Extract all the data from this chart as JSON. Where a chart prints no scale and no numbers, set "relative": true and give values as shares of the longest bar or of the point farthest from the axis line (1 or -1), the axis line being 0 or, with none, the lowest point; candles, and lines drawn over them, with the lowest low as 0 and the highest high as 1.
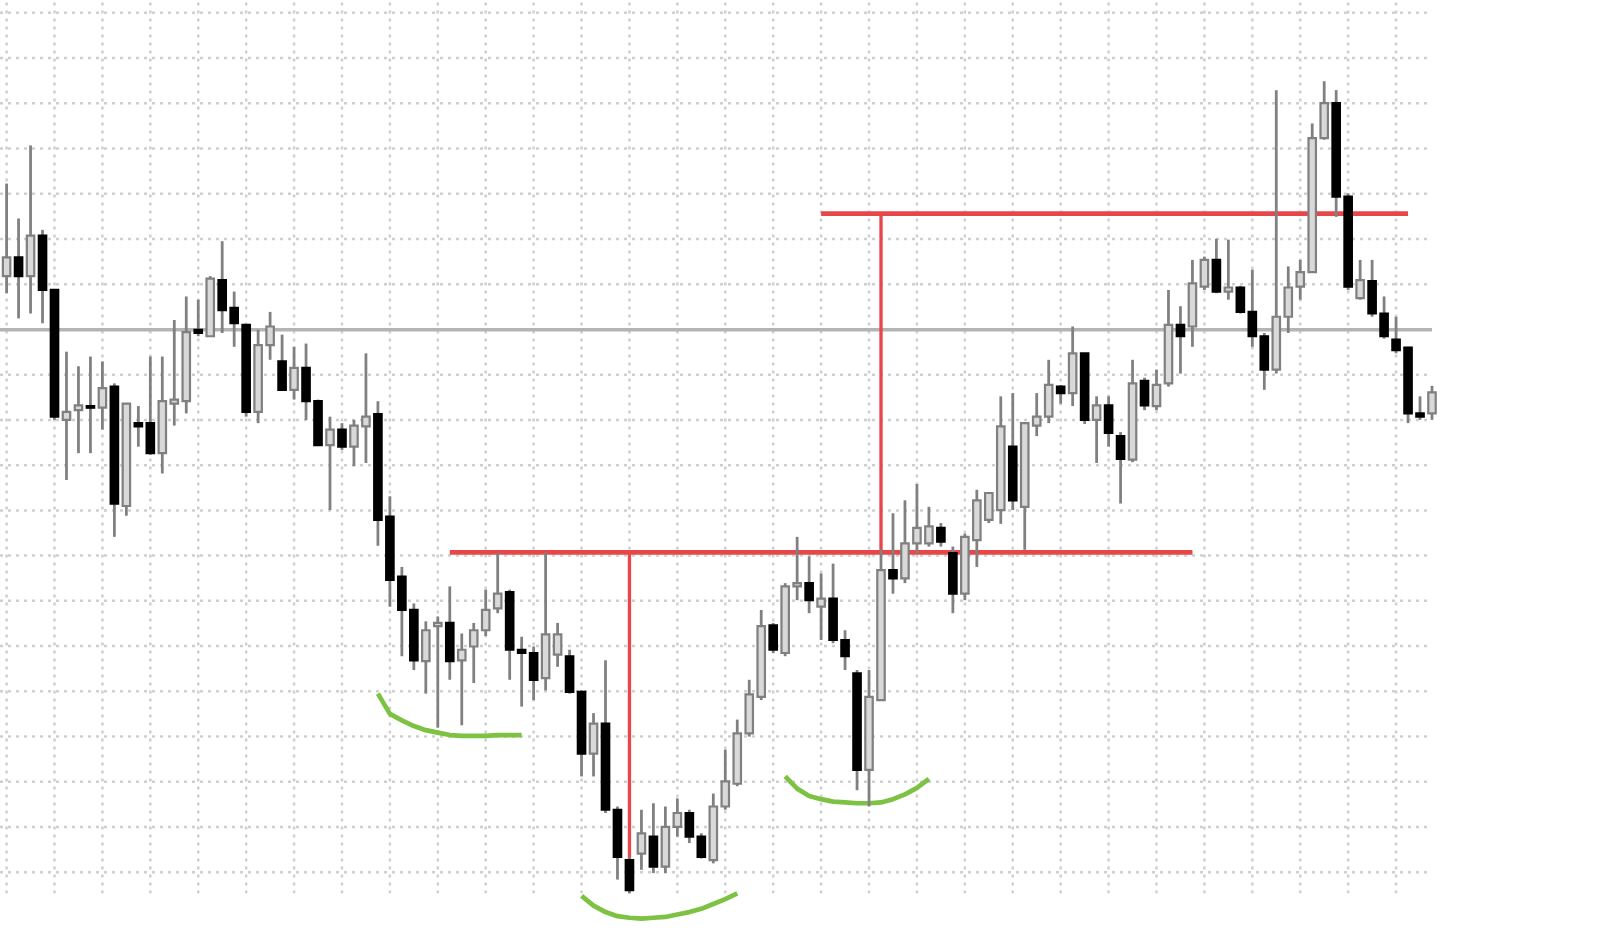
{
  "chart_data": {
    "type": "candlestick",
    "relative": true,
    "grid": true,
    "categories": [
      null,
      null,
      null,
      null,
      null,
      null,
      null,
      null,
      null,
      null,
      null,
      null,
      null,
      null,
      null,
      null,
      null,
      null,
      null,
      null,
      null,
      null,
      null,
      null,
      null,
      null,
      null,
      null,
      null,
      null,
      null,
      null,
      null,
      null,
      null,
      null,
      null,
      null,
      null,
      null,
      null,
      null,
      null,
      null,
      null,
      null,
      null,
      null,
      null,
      null,
      null,
      null,
      null,
      null,
      null,
      null,
      null,
      null,
      null,
      null,
      null,
      null,
      null,
      null,
      null,
      null,
      null,
      null,
      null,
      null,
      null,
      null,
      null,
      null,
      null,
      null,
      null,
      null,
      null,
      null,
      null,
      null,
      null,
      null,
      null,
      null,
      null,
      null,
      null,
      null,
      null,
      null,
      null,
      null,
      null,
      null,
      null,
      null,
      null,
      null,
      null,
      null,
      null,
      null,
      null,
      null,
      null,
      null,
      null,
      null,
      null,
      null,
      null,
      null,
      null,
      null,
      null,
      null,
      null,
      null
    ],
    "ohlc": [
      [
        0.76,
        0.874,
        0.739,
        0.783
      ],
      [
        0.783,
        0.831,
        0.708,
        0.76
      ],
      [
        0.76,
        0.921,
        0.714,
        0.81
      ],
      [
        0.81,
        0.817,
        0.702,
        0.743
      ],
      [
        0.743,
        0.743,
        0.583,
        0.587
      ],
      [
        0.583,
        0.667,
        0.509,
        0.593
      ],
      [
        0.595,
        0.649,
        0.542,
        0.601
      ],
      [
        0.6,
        0.661,
        0.542,
        0.598
      ],
      [
        0.598,
        0.655,
        0.571,
        0.622
      ],
      [
        0.624,
        0.628,
        0.439,
        0.48
      ],
      [
        0.477,
        0.603,
        0.465,
        0.603
      ],
      [
        0.579,
        0.6,
        0.55,
        0.575
      ],
      [
        0.579,
        0.661,
        0.54,
        0.542
      ],
      [
        0.542,
        0.661,
        0.517,
        0.606
      ],
      [
        0.603,
        0.706,
        0.576,
        0.608
      ],
      [
        0.606,
        0.735,
        0.591,
        0.691
      ],
      [
        0.694,
        0.731,
        0.686,
        0.69
      ],
      [
        0.686,
        0.76,
        0.686,
        0.757
      ],
      [
        0.755,
        0.803,
        0.69,
        0.718
      ],
      [
        0.721,
        0.741,
        0.673,
        0.702
      ],
      [
        0.7,
        0.7,
        0.587,
        0.593
      ],
      [
        0.593,
        0.694,
        0.579,
        0.675
      ],
      [
        0.675,
        0.716,
        0.657,
        0.698
      ],
      [
        0.655,
        0.688,
        0.62,
        0.62
      ],
      [
        0.62,
        0.673,
        0.608,
        0.647
      ],
      [
        0.647,
        0.677,
        0.583,
        0.606
      ],
      [
        0.606,
        0.608,
        0.552,
        0.552
      ],
      [
        0.552,
        0.587,
        0.472,
        0.571
      ],
      [
        0.571,
        0.579,
        0.546,
        0.55
      ],
      [
        0.55,
        0.583,
        0.526,
        0.576
      ],
      [
        0.575,
        0.665,
        0.53,
        0.587
      ],
      [
        0.59,
        0.606,
        0.428,
        0.46
      ],
      [
        0.464,
        0.489,
        0.353,
        0.386
      ],
      [
        0.39,
        0.402,
        0.292,
        0.349
      ],
      [
        0.349,
        0.357,
        0.275,
        0.287
      ],
      [
        0.286,
        0.335,
        0.246,
        0.324
      ],
      [
        0.329,
        0.341,
        0.204,
        0.333
      ],
      [
        0.333,
        0.378,
        0.263,
        0.286
      ],
      [
        0.287,
        0.32,
        0.207,
        0.3
      ],
      [
        0.304,
        0.333,
        0.259,
        0.324
      ],
      [
        0.324,
        0.374,
        0.317,
        0.349
      ],
      [
        0.351,
        0.419,
        0.345,
        0.369
      ],
      [
        0.371,
        0.374,
        0.263,
        0.3
      ],
      [
        0.3,
        0.316,
        0.23,
        0.296
      ],
      [
        0.296,
        0.304,
        0.238,
        0.263
      ],
      [
        0.265,
        0.42,
        0.25,
        0.319
      ],
      [
        0.294,
        0.333,
        0.279,
        0.319
      ],
      [
        0.292,
        0.3,
        0.246,
        0.248
      ],
      [
        0.248,
        0.25,
        0.144,
        0.172
      ],
      [
        0.172,
        0.222,
        0.144,
        0.209
      ],
      [
        0.209,
        0.287,
        0.099,
        0.103
      ],
      [
        0.103,
        0.107,
        0.017,
        0.045
      ],
      [
        0.041,
        0.045,
        0.0,
        0.004
      ],
      [
        0.049,
        0.103,
        0.029,
        0.074
      ],
      [
        0.07,
        0.111,
        0.025,
        0.033
      ],
      [
        0.033,
        0.107,
        0.025,
        0.082
      ],
      [
        0.082,
        0.117,
        0.07,
        0.099
      ],
      [
        0.099,
        0.103,
        0.062,
        0.07
      ],
      [
        0.07,
        0.074,
        0.043,
        0.045
      ],
      [
        0.041,
        0.123,
        0.037,
        0.107
      ],
      [
        0.107,
        0.177,
        0.103,
        0.138
      ],
      [
        0.135,
        0.214,
        0.132,
        0.197
      ],
      [
        0.197,
        0.263,
        0.193,
        0.245
      ],
      [
        0.242,
        0.349,
        0.238,
        0.329
      ],
      [
        0.33,
        0.333,
        0.296,
        0.3
      ],
      [
        0.296,
        0.382,
        0.292,
        0.378
      ],
      [
        0.378,
        0.439,
        0.361,
        0.382
      ],
      [
        0.382,
        0.415,
        0.345,
        0.361
      ],
      [
        0.353,
        0.394,
        0.312,
        0.363
      ],
      [
        0.363,
        0.406,
        0.308,
        0.312
      ],
      [
        0.312,
        0.324,
        0.275,
        0.292
      ],
      [
        0.271,
        0.275,
        0.127,
        0.152
      ],
      [
        0.152,
        0.275,
        0.107,
        0.242
      ],
      [
        0.238,
        0.423,
        0.238,
        0.398
      ],
      [
        0.398,
        0.468,
        0.369,
        0.388
      ],
      [
        0.388,
        0.484,
        0.382,
        0.431
      ],
      [
        0.431,
        0.504,
        0.419,
        0.45
      ],
      [
        0.431,
        0.476,
        0.427,
        0.452
      ],
      [
        0.45,
        0.456,
        0.427,
        0.433
      ],
      [
        0.419,
        0.427,
        0.345,
        0.369
      ],
      [
        0.369,
        0.443,
        0.361,
        0.439
      ],
      [
        0.435,
        0.497,
        0.402,
        0.484
      ],
      [
        0.46,
        0.494,
        0.456,
        0.493
      ],
      [
        0.472,
        0.612,
        0.455,
        0.575
      ],
      [
        0.55,
        0.616,
        0.472,
        0.484
      ],
      [
        0.476,
        0.579,
        0.423,
        0.579
      ],
      [
        0.576,
        0.616,
        0.563,
        0.587
      ],
      [
        0.587,
        0.657,
        0.579,
        0.626
      ],
      [
        0.624,
        0.626,
        0.603,
        0.616
      ],
      [
        0.616,
        0.698,
        0.6,
        0.665
      ],
      [
        0.665,
        0.665,
        0.578,
        0.583
      ],
      [
        0.583,
        0.612,
        0.53,
        0.601
      ],
      [
        0.601,
        0.612,
        0.55,
        0.567
      ],
      [
        0.563,
        0.568,
        0.48,
        0.535
      ],
      [
        0.534,
        0.657,
        0.531,
        0.628
      ],
      [
        0.631,
        0.635,
        0.595,
        0.601
      ],
      [
        0.6,
        0.645,
        0.595,
        0.626
      ],
      [
        0.628,
        0.743,
        0.624,
        0.7
      ],
      [
        0.7,
        0.723,
        0.64,
        0.686
      ],
      [
        0.698,
        0.78,
        0.673,
        0.751
      ],
      [
        0.747,
        0.784,
        0.743,
        0.78
      ],
      [
        0.78,
        0.806,
        0.739,
        0.741
      ],
      [
        0.741,
        0.805,
        0.731,
        0.746
      ],
      [
        0.746,
        0.748,
        0.714,
        0.716
      ],
      [
        0.716,
        0.768,
        0.673,
        0.686
      ],
      [
        0.686,
        0.69,
        0.62,
        0.645
      ],
      [
        0.645,
        0.989,
        0.64,
        0.71
      ],
      [
        0.71,
        0.772,
        0.69,
        0.746
      ],
      [
        0.747,
        0.78,
        0.731,
        0.765
      ],
      [
        0.765,
        0.948,
        0.764,
        0.93
      ],
      [
        0.93,
        1.0,
        0.928,
        0.973
      ],
      [
        0.973,
        0.989,
        0.833,
        0.858
      ],
      [
        0.858,
        0.862,
        0.743,
        0.747
      ],
      [
        0.733,
        0.78,
        0.731,
        0.755
      ],
      [
        0.754,
        0.78,
        0.71,
        0.714
      ],
      [
        0.714,
        0.735,
        0.683,
        0.686
      ],
      [
        0.682,
        0.71,
        0.665,
        0.669
      ],
      [
        0.672,
        0.673,
        0.579,
        0.591
      ],
      [
        0.591,
        0.612,
        0.583,
        0.587
      ],
      [
        0.591,
        0.625,
        0.583,
        0.617
      ]
    ],
    "colors": [
      "#d9d9d9",
      "#000000",
      "#d9d9d9",
      "#000000",
      "#000000",
      "#d9d9d9",
      "#d9d9d9",
      "#000000",
      "#d9d9d9",
      "#000000",
      "#d9d9d9",
      "#000000",
      "#000000",
      "#d9d9d9",
      "#d9d9d9",
      "#d9d9d9",
      "#000000",
      "#d9d9d9",
      "#000000",
      "#000000",
      "#000000",
      "#d9d9d9",
      "#d9d9d9",
      "#000000",
      "#d9d9d9",
      "#000000",
      "#000000",
      "#d9d9d9",
      "#000000",
      "#d9d9d9",
      "#d9d9d9",
      "#000000",
      "#000000",
      "#000000",
      "#000000",
      "#d9d9d9",
      "#d9d9d9",
      "#000000",
      "#d9d9d9",
      "#d9d9d9",
      "#d9d9d9",
      "#d9d9d9",
      "#000000",
      "#000000",
      "#000000",
      "#d9d9d9",
      "#d9d9d9",
      "#000000",
      "#000000",
      "#d9d9d9",
      "#000000",
      "#000000",
      "#000000",
      "#d9d9d9",
      "#000000",
      "#d9d9d9",
      "#d9d9d9",
      "#000000",
      "#000000",
      "#d9d9d9",
      "#d9d9d9",
      "#d9d9d9",
      "#d9d9d9",
      "#d9d9d9",
      "#000000",
      "#d9d9d9",
      "#d9d9d9",
      "#000000",
      "#d9d9d9",
      "#000000",
      "#000000",
      "#000000",
      "#d9d9d9",
      "#d9d9d9",
      "#000000",
      "#d9d9d9",
      "#d9d9d9",
      "#d9d9d9",
      "#000000",
      "#000000",
      "#d9d9d9",
      "#d9d9d9",
      "#d9d9d9",
      "#d9d9d9",
      "#000000",
      "#d9d9d9",
      "#d9d9d9",
      "#d9d9d9",
      "#000000",
      "#d9d9d9",
      "#000000",
      "#d9d9d9",
      "#000000",
      "#000000",
      "#d9d9d9",
      "#000000",
      "#d9d9d9",
      "#d9d9d9",
      "#000000",
      "#d9d9d9",
      "#d9d9d9",
      "#000000",
      "#d9d9d9",
      "#000000",
      "#000000",
      "#000000",
      "#d9d9d9",
      "#d9d9d9",
      "#d9d9d9",
      "#d9d9d9",
      "#d9d9d9",
      "#000000",
      "#000000",
      "#d9d9d9",
      "#000000",
      "#000000",
      "#000000",
      "#000000",
      "#000000",
      "#d9d9d9"
    ],
    "series": [
      {
        "type": "line",
        "color": "#e8474a",
        "values": [
          null,
          null,
          null,
          null,
          null,
          null,
          null,
          null,
          null,
          null,
          null,
          null,
          null,
          null,
          null,
          null,
          null,
          null,
          null,
          null,
          null,
          null,
          null,
          null,
          null,
          null,
          null,
          null,
          null,
          null,
          null,
          null,
          null,
          null,
          null,
          null,
          null,
          0.42,
          0.42,
          0.42,
          0.42,
          0.42,
          0.42,
          0.42,
          0.42,
          0.42,
          0.42,
          0.42,
          0.42,
          0.42,
          0.42,
          0.42,
          0.42,
          0.42,
          0.42,
          0.42,
          0.42,
          0.42,
          0.42,
          0.42,
          0.42,
          0.42,
          0.42,
          0.42,
          0.42,
          0.42,
          0.42,
          0.42,
          0.42,
          0.42,
          0.42,
          0.42,
          0.42,
          0.42,
          0.42,
          0.42,
          0.42,
          0.42,
          0.42,
          0.42,
          0.42,
          0.42,
          0.42,
          0.42,
          0.42,
          0.42,
          0.42,
          0.42,
          0.42,
          0.42,
          0.42,
          0.42,
          0.42,
          0.42,
          0.42,
          0.42,
          0.42,
          0.42,
          0.42,
          0.42,
          null,
          null,
          null,
          null,
          null,
          null,
          null,
          null,
          null,
          null,
          null,
          null,
          null,
          null,
          null,
          null,
          null,
          null,
          null,
          null
        ]
      },
      {
        "type": "line",
        "color": "#e8474a",
        "values": [
          null,
          null,
          null,
          null,
          null,
          null,
          null,
          null,
          null,
          null,
          null,
          null,
          null,
          null,
          null,
          null,
          null,
          null,
          null,
          null,
          null,
          null,
          null,
          null,
          null,
          null,
          null,
          null,
          null,
          null,
          null,
          null,
          null,
          null,
          null,
          null,
          null,
          null,
          null,
          null,
          null,
          null,
          null,
          null,
          null,
          null,
          null,
          null,
          null,
          null,
          null,
          null,
          null,
          null,
          null,
          null,
          null,
          null,
          null,
          null,
          null,
          null,
          null,
          null,
          null,
          null,
          null,
          null,
          0.837,
          0.837,
          0.837,
          0.837,
          0.837,
          0.837,
          0.837,
          0.837,
          0.837,
          0.837,
          0.837,
          0.837,
          0.837,
          0.837,
          0.837,
          0.837,
          0.837,
          0.837,
          0.837,
          0.837,
          0.837,
          0.837,
          0.837,
          0.837,
          0.837,
          0.837,
          0.837,
          0.837,
          0.837,
          0.837,
          0.837,
          0.837,
          0.837,
          0.837,
          0.837,
          0.837,
          0.837,
          0.837,
          0.837,
          0.837,
          0.837,
          0.837,
          0.837,
          0.837,
          0.837,
          0.837,
          0.837,
          0.837,
          0.837,
          0.837,
          null,
          null
        ]
      },
      {
        "type": "bar",
        "color": "#e8474a",
        "values": [
          null,
          null,
          null,
          null,
          null,
          null,
          null,
          null,
          null,
          null,
          null,
          null,
          null,
          null,
          null,
          null,
          null,
          null,
          null,
          null,
          null,
          null,
          null,
          null,
          null,
          null,
          null,
          null,
          null,
          null,
          null,
          null,
          null,
          null,
          null,
          null,
          null,
          null,
          null,
          null,
          null,
          null,
          null,
          null,
          null,
          null,
          null,
          null,
          null,
          null,
          null,
          null,
          0.38,
          null,
          null,
          null,
          null,
          null,
          null,
          null,
          null,
          null,
          null,
          null,
          null,
          null,
          null,
          null,
          null,
          null,
          null,
          null,
          null,
          null,
          null,
          null,
          null,
          null,
          null,
          null,
          null,
          null,
          null,
          null,
          null,
          null,
          null,
          null,
          null,
          null,
          null,
          null,
          null,
          null,
          null,
          null,
          null,
          null,
          null,
          null,
          null,
          null,
          null,
          null,
          null,
          null,
          null,
          null,
          null,
          null,
          null,
          null,
          null,
          null,
          null,
          null,
          null,
          null,
          null,
          null
        ],
        "base": [
          null,
          null,
          null,
          null,
          null,
          null,
          null,
          null,
          null,
          null,
          null,
          null,
          null,
          null,
          null,
          null,
          null,
          null,
          null,
          null,
          null,
          null,
          null,
          null,
          null,
          null,
          null,
          null,
          null,
          null,
          null,
          null,
          null,
          null,
          null,
          null,
          null,
          null,
          null,
          null,
          null,
          null,
          null,
          null,
          null,
          null,
          null,
          null,
          null,
          null,
          null,
          null,
          0.04,
          null,
          null,
          null,
          null,
          null,
          null,
          null,
          null,
          null,
          null,
          null,
          null,
          null,
          null,
          null,
          null,
          null,
          null,
          null,
          null,
          null,
          null,
          null,
          null,
          null,
          null,
          null,
          null,
          null,
          null,
          null,
          null,
          null,
          null,
          null,
          null,
          null,
          null,
          null,
          null,
          null,
          null,
          null,
          null,
          null,
          null,
          null,
          null,
          null,
          null,
          null,
          null,
          null,
          null,
          null,
          null,
          null,
          null,
          null,
          null,
          null,
          null,
          null,
          null,
          null,
          null,
          null
        ]
      },
      {
        "type": "bar",
        "color": "#e8474a",
        "values": [
          null,
          null,
          null,
          null,
          null,
          null,
          null,
          null,
          null,
          null,
          null,
          null,
          null,
          null,
          null,
          null,
          null,
          null,
          null,
          null,
          null,
          null,
          null,
          null,
          null,
          null,
          null,
          null,
          null,
          null,
          null,
          null,
          null,
          null,
          null,
          null,
          null,
          null,
          null,
          null,
          null,
          null,
          null,
          null,
          null,
          null,
          null,
          null,
          null,
          null,
          null,
          null,
          null,
          null,
          null,
          null,
          null,
          null,
          null,
          null,
          null,
          null,
          null,
          null,
          null,
          null,
          null,
          null,
          null,
          null,
          null,
          null,
          null,
          0.417,
          null,
          null,
          null,
          null,
          null,
          null,
          null,
          null,
          null,
          null,
          null,
          null,
          null,
          null,
          null,
          null,
          null,
          null,
          null,
          null,
          null,
          null,
          null,
          null,
          null,
          null,
          null,
          null,
          null,
          null,
          null,
          null,
          null,
          null,
          null,
          null,
          null,
          null,
          null,
          null,
          null,
          null,
          null,
          null,
          null,
          null
        ],
        "base": [
          null,
          null,
          null,
          null,
          null,
          null,
          null,
          null,
          null,
          null,
          null,
          null,
          null,
          null,
          null,
          null,
          null,
          null,
          null,
          null,
          null,
          null,
          null,
          null,
          null,
          null,
          null,
          null,
          null,
          null,
          null,
          null,
          null,
          null,
          null,
          null,
          null,
          null,
          null,
          null,
          null,
          null,
          null,
          null,
          null,
          null,
          null,
          null,
          null,
          null,
          null,
          null,
          null,
          null,
          null,
          null,
          null,
          null,
          null,
          null,
          null,
          null,
          null,
          null,
          null,
          null,
          null,
          null,
          null,
          null,
          null,
          null,
          null,
          0.42,
          null,
          null,
          null,
          null,
          null,
          null,
          null,
          null,
          null,
          null,
          null,
          null,
          null,
          null,
          null,
          null,
          null,
          null,
          null,
          null,
          null,
          null,
          null,
          null,
          null,
          null,
          null,
          null,
          null,
          null,
          null,
          null,
          null,
          null,
          null,
          null,
          null,
          null,
          null,
          null,
          null,
          null,
          null,
          null,
          null,
          null
        ]
      },
      {
        "type": "line",
        "color": "#7dc242",
        "values": [
          null,
          null,
          null,
          null,
          null,
          null,
          null,
          null,
          null,
          null,
          null,
          null,
          null,
          null,
          null,
          null,
          null,
          null,
          null,
          null,
          null,
          null,
          null,
          null,
          null,
          null,
          null,
          null,
          null,
          null,
          null,
          0.246,
          0.221,
          0.213,
          0.206,
          0.201,
          0.198,
          0.195,
          0.194,
          0.194,
          0.194,
          0.195,
          0.195,
          0.195,
          null,
          null,
          null,
          null,
          null,
          null,
          null,
          null,
          null,
          null,
          null,
          null,
          null,
          null,
          null,
          null,
          null,
          null,
          null,
          null,
          null,
          null,
          null,
          null,
          null,
          null,
          null,
          null,
          null,
          null,
          null,
          null,
          null,
          null,
          null,
          null,
          null,
          null,
          null,
          null,
          null,
          null,
          null,
          null,
          null,
          null,
          null,
          null,
          null,
          null,
          null,
          null,
          null,
          null,
          null,
          null,
          null,
          null,
          null,
          null,
          null,
          null,
          null,
          null,
          null,
          null,
          null,
          null,
          null,
          null,
          null,
          null,
          null,
          null,
          null,
          null
        ]
      },
      {
        "type": "line",
        "color": "#7dc242",
        "values": [
          null,
          null,
          null,
          null,
          null,
          null,
          null,
          null,
          null,
          null,
          null,
          null,
          null,
          null,
          null,
          null,
          null,
          null,
          null,
          null,
          null,
          null,
          null,
          null,
          null,
          null,
          null,
          null,
          null,
          null,
          null,
          null,
          null,
          null,
          null,
          null,
          null,
          null,
          null,
          null,
          null,
          null,
          null,
          null,
          null,
          null,
          null,
          null,
          -0.003,
          -0.015,
          -0.023,
          -0.028,
          -0.03,
          -0.031,
          -0.03,
          -0.029,
          -0.026,
          -0.023,
          -0.019,
          -0.013,
          -0.007,
          0.0,
          null,
          null,
          null,
          null,
          null,
          null,
          null,
          null,
          null,
          null,
          null,
          null,
          null,
          null,
          null,
          null,
          null,
          null,
          null,
          null,
          null,
          null,
          null,
          null,
          null,
          null,
          null,
          null,
          null,
          null,
          null,
          null,
          null,
          null,
          null,
          null,
          null,
          null,
          null,
          null,
          null,
          null,
          null,
          null,
          null,
          null,
          null,
          null,
          null,
          null,
          null,
          null,
          null,
          null,
          null,
          null,
          null,
          null
        ]
      },
      {
        "type": "line",
        "color": "#7dc242",
        "values": [
          null,
          null,
          null,
          null,
          null,
          null,
          null,
          null,
          null,
          null,
          null,
          null,
          null,
          null,
          null,
          null,
          null,
          null,
          null,
          null,
          null,
          null,
          null,
          null,
          null,
          null,
          null,
          null,
          null,
          null,
          null,
          null,
          null,
          null,
          null,
          null,
          null,
          null,
          null,
          null,
          null,
          null,
          null,
          null,
          null,
          null,
          null,
          null,
          null,
          null,
          null,
          null,
          null,
          null,
          null,
          null,
          null,
          null,
          null,
          null,
          null,
          null,
          null,
          null,
          null,
          0.144,
          0.129,
          0.12,
          0.116,
          0.113,
          0.112,
          0.111,
          0.111,
          0.112,
          0.116,
          0.122,
          0.13,
          0.141,
          null,
          null,
          null,
          null,
          null,
          null,
          null,
          null,
          null,
          null,
          null,
          null,
          null,
          null,
          null,
          null,
          null,
          null,
          null,
          null,
          null,
          null,
          null,
          null,
          null,
          null,
          null,
          null,
          null,
          null,
          null,
          null,
          null,
          null,
          null,
          null,
          null,
          null,
          null,
          null,
          null,
          null
        ]
      }
    ],
    "ref_lines": [
      {
        "axis": "y",
        "value": 0.694,
        "color": "#b4b4b4"
      }
    ]
  }
}
